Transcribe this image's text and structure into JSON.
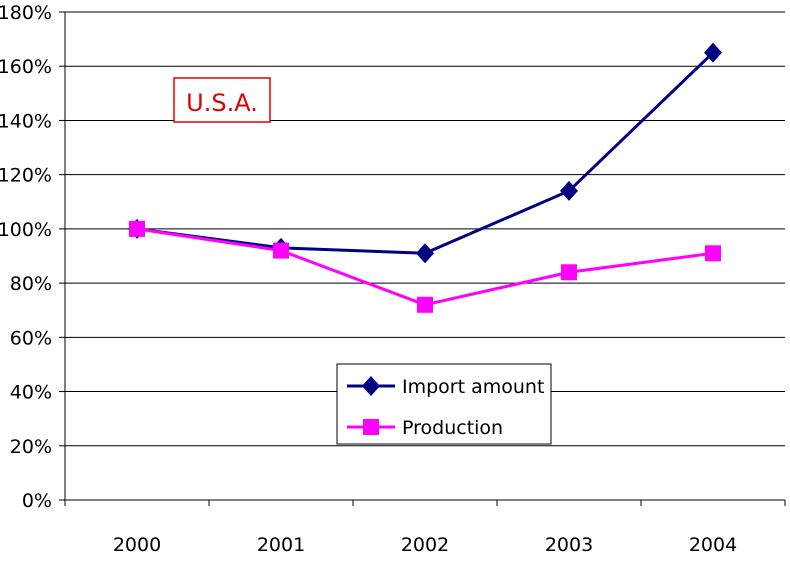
{
  "chart_data": {
    "type": "line",
    "title": "",
    "xlabel": "",
    "ylabel": "",
    "categories": [
      "2000",
      "2001",
      "2002",
      "2003",
      "2004"
    ],
    "ylim": [
      0,
      180
    ],
    "y_ticks": [
      0,
      20,
      40,
      60,
      80,
      100,
      120,
      140,
      160,
      180
    ],
    "y_tick_labels": [
      "0%",
      "20%",
      "40%",
      "60%",
      "80%",
      "100%",
      "120%",
      "140%",
      "160%",
      "180%"
    ],
    "grid": true,
    "annotation": "U.S.A.",
    "legend_position": "bottom-center",
    "series": [
      {
        "name": "Import amount",
        "values": [
          100,
          93,
          91,
          114,
          165
        ],
        "color": "#000080",
        "marker": "diamond"
      },
      {
        "name": "Production",
        "values": [
          100,
          92,
          72,
          84,
          91
        ],
        "color": "#ff00ff",
        "marker": "square"
      }
    ],
    "colors": {
      "annotation": "#e00000",
      "axis": "#000000",
      "grid": "#000000"
    }
  }
}
